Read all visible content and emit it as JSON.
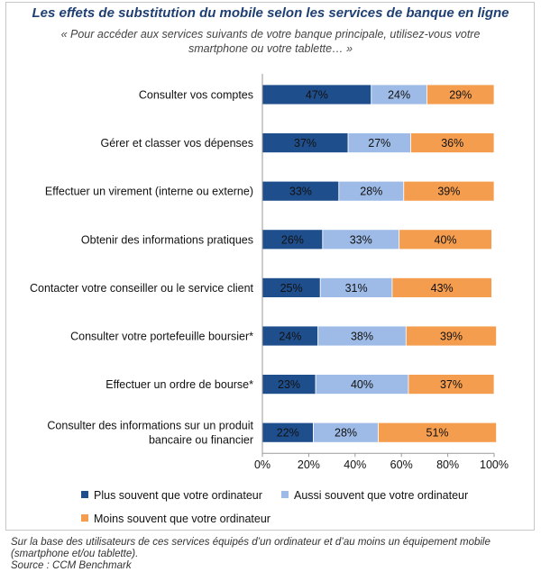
{
  "header": {
    "title": "Les effets de substitution du mobile selon les services de banque en ligne",
    "subtitle": "« Pour accéder aux services suivants de votre banque principale, utilisez-vous votre smartphone ou votre tablette… »"
  },
  "footnote": {
    "line1": "Sur la base des utilisateurs de ces services équipés d’un ordinateur et d’au moins un équipement mobile (smartphone et/ou tablette).",
    "line2": "Source : CCM Benchmark"
  },
  "chart_data": {
    "type": "bar",
    "orientation": "horizontal",
    "stacked": true,
    "unit": "%",
    "categories": [
      [
        "Consulter vos comptes"
      ],
      [
        "Gérer et classer vos dépenses"
      ],
      [
        "Effectuer un virement (interne ou externe)"
      ],
      [
        "Obtenir des informations pratiques"
      ],
      [
        "Contacter votre conseiller ou le service client"
      ],
      [
        "Consulter votre portefeuille boursier*"
      ],
      [
        "Effectuer un ordre de bourse*"
      ],
      [
        "Consulter des informations sur un produit",
        "bancaire ou financier"
      ]
    ],
    "series": [
      {
        "name": "Plus souvent que votre ordinateur",
        "color": "#1f4e8c",
        "values": [
          47,
          37,
          33,
          26,
          25,
          24,
          23,
          22
        ]
      },
      {
        "name": "Aussi souvent que votre ordinateur",
        "color": "#9dbbe6",
        "values": [
          24,
          27,
          28,
          33,
          31,
          38,
          40,
          28
        ]
      },
      {
        "name": "Moins souvent que votre ordinateur",
        "color": "#f59d4e",
        "values": [
          29,
          36,
          39,
          40,
          43,
          39,
          37,
          51
        ]
      }
    ],
    "x_ticks": [
      "0%",
      "20%",
      "40%",
      "60%",
      "80%",
      "100%"
    ],
    "xlim": [
      0,
      100
    ],
    "legend_position": "bottom",
    "grid": false
  }
}
